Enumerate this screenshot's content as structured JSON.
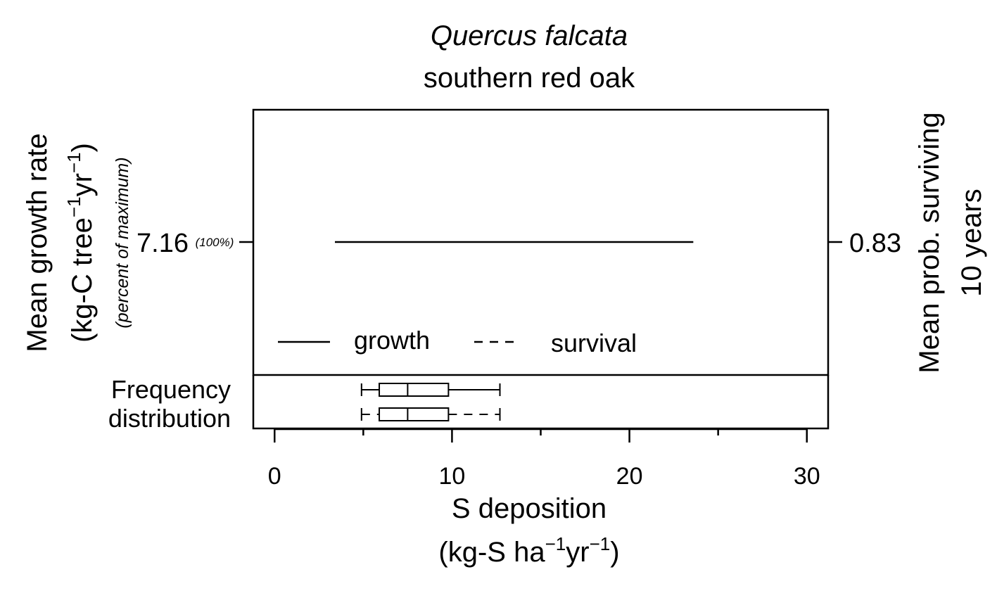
{
  "chart_data": {
    "type": "line",
    "title": "Quercus falcata",
    "subtitle": "southern red oak",
    "xlabel": {
      "line1": "S deposition",
      "line2_parts": [
        "(kg-S ha",
        "−1",
        "yr",
        "−1",
        ")"
      ]
    },
    "ylabel_left": {
      "line1": "Mean growth rate",
      "line2_parts": [
        "(kg-C tree",
        "−1",
        "yr",
        "−1",
        ")"
      ],
      "note": "(percent of maximum)"
    },
    "ylabel_right": {
      "line1": "Mean prob. surviving",
      "line2": "10 years"
    },
    "xlim": [
      -1.2,
      31.2
    ],
    "x_ticks": [
      0,
      10,
      20,
      30
    ],
    "x_minor_ticks": [
      5,
      15,
      25
    ],
    "left_tick": {
      "value": "7.16",
      "percent": "(100%)"
    },
    "right_tick": {
      "value": "0.83"
    },
    "series": [
      {
        "name": "growth",
        "style": "solid",
        "x": [
          3.4,
          23.6
        ],
        "y": [
          7.16,
          7.16
        ]
      }
    ],
    "legend": {
      "placement": "bottom-left",
      "entries": [
        {
          "label": "growth",
          "style": "solid"
        },
        {
          "label": "survival",
          "style": "dashed"
        }
      ]
    },
    "frequency_panel": {
      "label_line1": "Frequency",
      "label_line2": "distribution",
      "boxplots": [
        {
          "series": "growth",
          "whisker_style": "solid",
          "min": 4.9,
          "q1": 5.9,
          "median": 7.5,
          "q3": 9.8,
          "max": 12.7
        },
        {
          "series": "survival",
          "whisker_style": "dashed",
          "min": 4.9,
          "q1": 5.9,
          "median": 7.5,
          "q3": 9.8,
          "max": 12.7
        }
      ]
    },
    "colors": {
      "line": "#000000",
      "note_text": "#555555"
    }
  }
}
